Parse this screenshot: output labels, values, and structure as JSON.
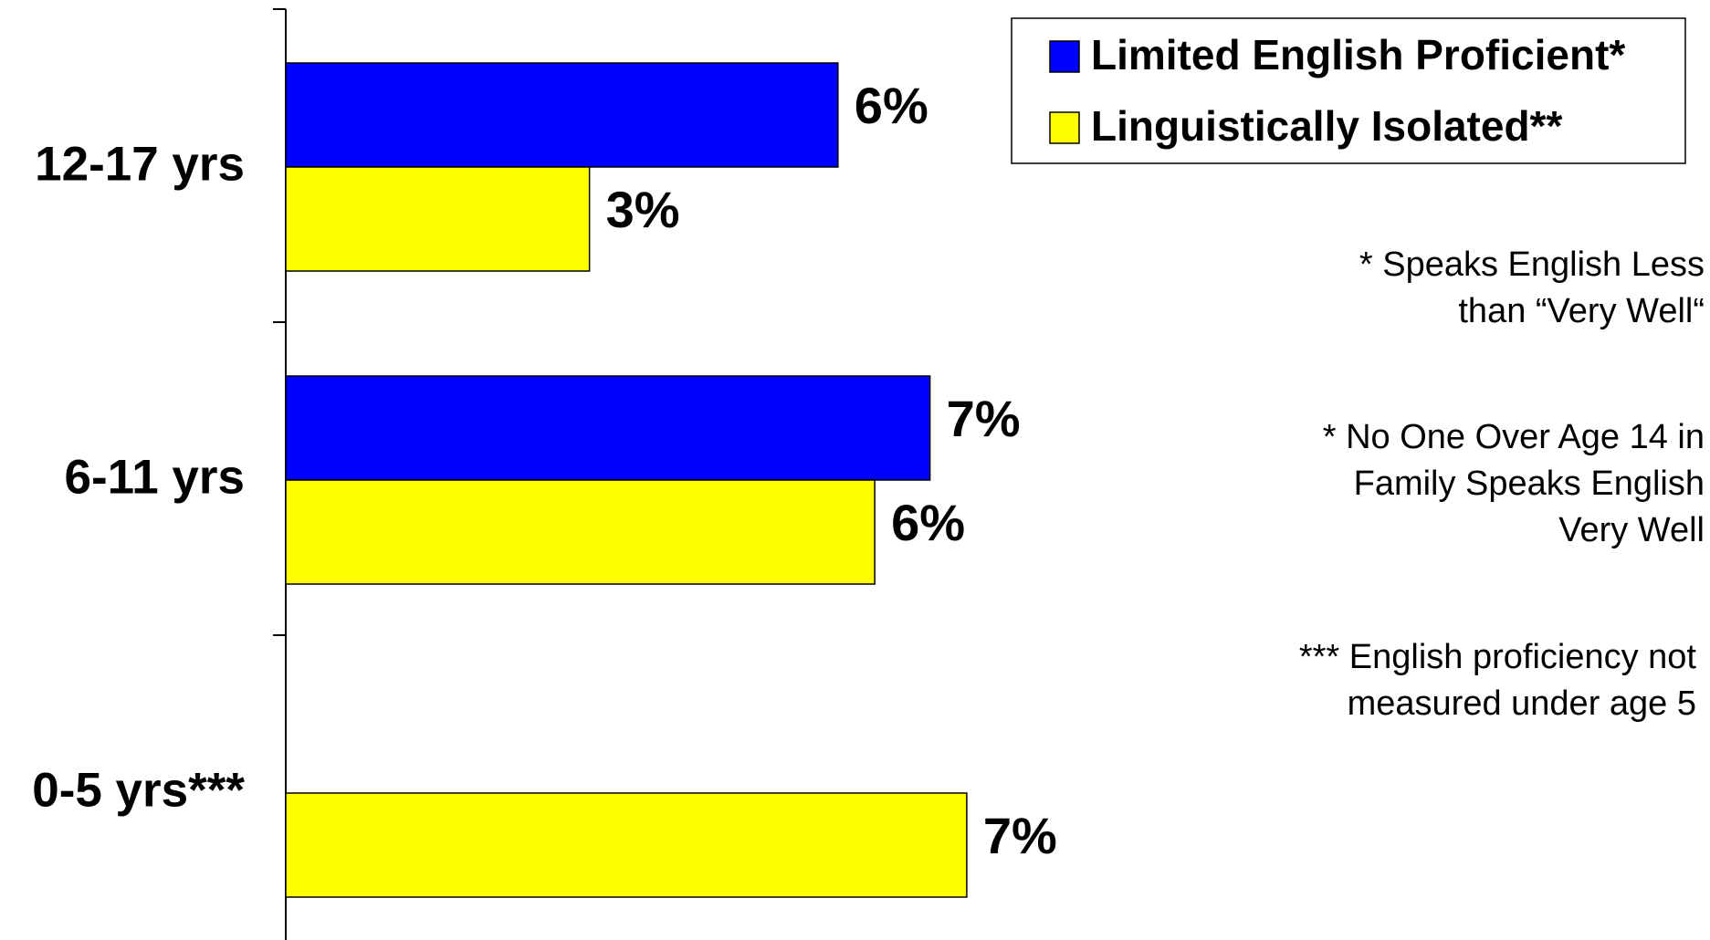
{
  "chart_data": {
    "type": "hbar",
    "categories": [
      "12-17 yrs",
      "6-11 yrs",
      "0-5 yrs***"
    ],
    "series": [
      {
        "name": "Limited English Proficient*",
        "color": "#0000ff",
        "values": [
          6.0,
          7.0,
          null
        ],
        "value_labels": [
          "6%",
          "7%",
          null
        ]
      },
      {
        "name": "Linguistically Isolated**",
        "color": "#ffff00",
        "values": [
          3.3,
          6.4,
          7.4
        ],
        "value_labels": [
          "3%",
          "6%",
          "7%"
        ]
      }
    ],
    "xlim": [
      0,
      10
    ],
    "legend": "top-right",
    "footnotes": [
      [
        "* Speaks English Less",
        "than “Very Well“"
      ],
      [
        "* No One Over Age 14 in",
        "Family Speaks English",
        "Very Well"
      ],
      [
        "*** English proficiency not",
        "measured under age 5"
      ]
    ]
  }
}
